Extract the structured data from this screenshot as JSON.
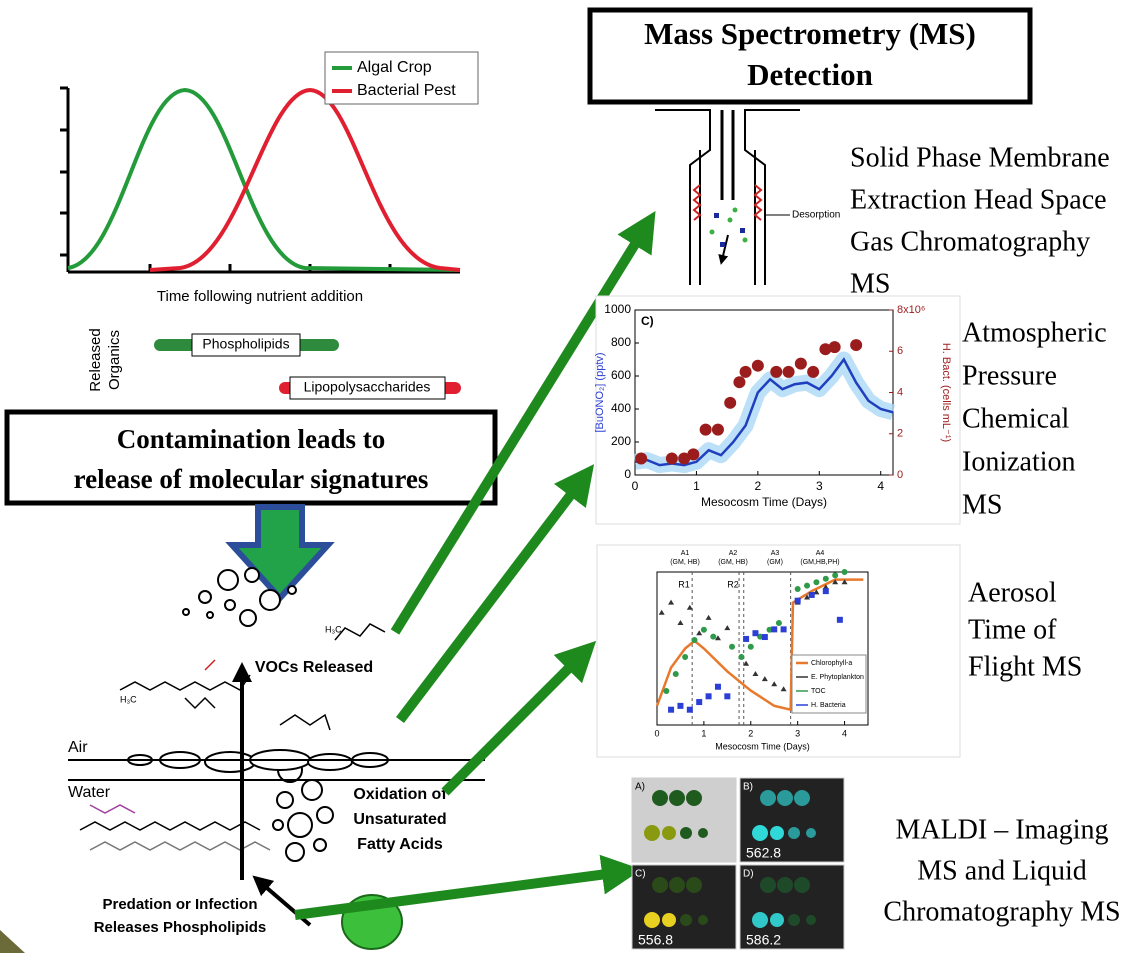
{
  "header": {
    "title_lines": [
      "Mass Spectrometry (MS)",
      "Detection"
    ]
  },
  "growth_chart": {
    "legend": [
      "Algal Crop",
      "Bacterial Pest"
    ],
    "x_label": "Time following nutrient addition",
    "side_label_lines": [
      "Released",
      "Organics"
    ],
    "bars": [
      "Phospholipids",
      "Lipopolysaccharides"
    ]
  },
  "contamination": {
    "lines": [
      "Contamination leads to",
      "release of molecular signatures"
    ]
  },
  "process": {
    "vocs": "VOCs Released",
    "air": "Air",
    "water": "Water",
    "oxidation_lines": [
      "Oxidation of",
      "Unsaturated",
      "Fatty Acids"
    ],
    "predation_lines": [
      "Predation or Infection",
      "Releases Phospholipids"
    ]
  },
  "device": {
    "label": "Desorption"
  },
  "methods": [
    {
      "lines": [
        "Solid Phase Membrane",
        "Extraction Head Space",
        "Gas Chromatography",
        "MS"
      ]
    },
    {
      "lines": [
        "Atmospheric",
        "Pressure",
        "Chemical",
        "Ionization",
        "MS"
      ]
    },
    {
      "lines": [
        "Aerosol",
        "Time of",
        "Flight MS"
      ]
    },
    {
      "lines": [
        "MALDI  – Imaging",
        "MS and Liquid",
        "Chromatography MS"
      ]
    }
  ],
  "apci_chart": {
    "type": "line",
    "panel": "C)",
    "x_label": "Mesocosm Time (Days)",
    "y_label": "[BuONO₂] (pptv)",
    "y2_label": "H. Bact. (cells mL⁻¹)",
    "xlim": [
      0,
      4.2
    ],
    "xticks": [
      0,
      1,
      2,
      3,
      4
    ],
    "ylim": [
      0,
      1000
    ],
    "yticks": [
      0,
      200,
      400,
      600,
      800,
      1000
    ],
    "y2lim": [
      0,
      8
    ],
    "y2ticks": [
      0,
      2,
      4,
      6,
      {
        "value": 8,
        "label": "8x10⁶"
      }
    ],
    "series": [
      {
        "color": "#1f3fbf",
        "x": [
          0,
          0.2,
          0.4,
          0.6,
          0.8,
          1.0,
          1.2,
          1.4,
          1.6,
          1.8,
          2.0,
          2.2,
          2.4,
          2.6,
          2.8,
          3.0,
          3.2,
          3.4,
          3.6,
          3.8,
          4.0,
          4.2
        ],
        "values": [
          80,
          90,
          60,
          70,
          60,
          80,
          150,
          120,
          200,
          300,
          500,
          580,
          520,
          550,
          560,
          520,
          600,
          700,
          560,
          450,
          400,
          380
        ]
      },
      {
        "axis": "y2",
        "color": "#9b1c1c",
        "x": [
          0.1,
          0.6,
          0.8,
          0.95,
          1.15,
          1.35,
          1.55,
          1.7,
          1.8,
          2.0,
          2.3,
          2.5,
          2.7,
          2.9,
          3.1,
          3.25,
          3.6
        ],
        "values": [
          0.8,
          0.8,
          0.8,
          1.0,
          2.2,
          2.2,
          3.5,
          4.5,
          5.0,
          5.3,
          5.0,
          5.0,
          5.4,
          5.0,
          6.1,
          6.2,
          6.3
        ]
      }
    ]
  },
  "aerosol_chart": {
    "type": "scatter",
    "x_label": "Mesocosm Time (Days)",
    "xlim": [
      0,
      4.5
    ],
    "xticks": [
      0,
      1,
      2,
      3,
      4
    ],
    "annotations": [
      "A1",
      "(GM, HB)",
      "A2",
      "(GM, HB)",
      "A3",
      "(GM)",
      "A4",
      "(GM,HB,PH)",
      "R1",
      "R2"
    ],
    "series": [
      {
        "name": "Chlorophyll-a",
        "color": "#e8792b",
        "ylim": [
          0,
          0.4
        ],
        "x": [
          0,
          0.3,
          0.6,
          0.8,
          1.0,
          1.5,
          2.0,
          2.5,
          2.85,
          2.9,
          3.3,
          3.8,
          4.4
        ],
        "values": [
          0.05,
          0.15,
          0.2,
          0.22,
          0.2,
          0.14,
          0.09,
          0.05,
          0.04,
          0.32,
          0.35,
          0.38,
          0.38
        ]
      },
      {
        "name": "E. Phytoplankton",
        "color": "#333333",
        "ylim": [
          0,
          30
        ],
        "x": [
          0.1,
          0.3,
          0.5,
          0.7,
          0.9,
          1.1,
          1.3,
          1.5,
          1.9,
          2.1,
          2.3,
          2.5,
          2.7,
          3.0,
          3.2,
          3.4,
          3.6,
          3.8,
          4.0
        ],
        "values": [
          22,
          24,
          20,
          23,
          18,
          21,
          17,
          19,
          12,
          10,
          9,
          8,
          7,
          24,
          25,
          26,
          27,
          28,
          28
        ]
      },
      {
        "name": "TOC",
        "color": "#2e9a4a",
        "ylim": [
          0,
          450
        ],
        "x": [
          0.2,
          0.4,
          0.6,
          0.8,
          1.0,
          1.2,
          1.6,
          1.8,
          2.0,
          2.2,
          2.4,
          2.6,
          3.0,
          3.2,
          3.4,
          3.6,
          3.8,
          4.0
        ],
        "values": [
          100,
          150,
          200,
          250,
          280,
          260,
          230,
          200,
          230,
          260,
          280,
          300,
          400,
          410,
          420,
          430,
          440,
          450
        ]
      },
      {
        "name": "H. Bacteria",
        "color": "#2b3fd6",
        "ylim": [
          0,
          8
        ],
        "x": [
          0.3,
          0.5,
          0.7,
          0.9,
          1.1,
          1.3,
          1.5,
          1.9,
          2.1,
          2.3,
          2.5,
          2.7,
          3.0,
          3.3,
          3.6,
          3.9,
          4.2
        ],
        "values": [
          0.8,
          1,
          0.8,
          1.2,
          1.5,
          2,
          1.5,
          4.5,
          4.8,
          4.6,
          5,
          5,
          6.5,
          6.8,
          7.0,
          5.5,
          3.5
        ]
      }
    ]
  },
  "maldi": {
    "panels": [
      {
        "label": "A)"
      },
      {
        "label": "B)",
        "mass": "562.8"
      },
      {
        "label": "C)",
        "mass": "556.8"
      },
      {
        "label": "D)",
        "mass": "586.2"
      }
    ]
  }
}
